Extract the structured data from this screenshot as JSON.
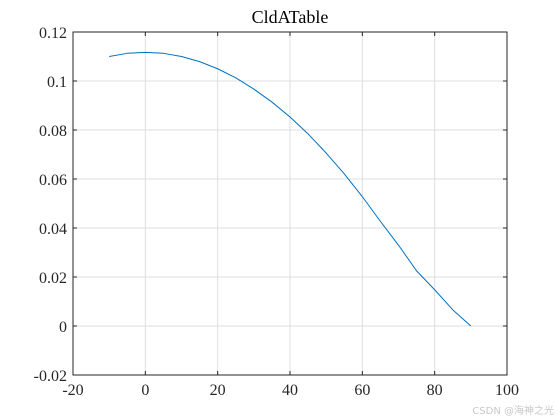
{
  "chart_data": {
    "type": "line",
    "title": "CldATable",
    "xlabel": "",
    "ylabel": "",
    "xlim": [
      -20,
      100
    ],
    "ylim": [
      -0.02,
      0.12
    ],
    "xticks": [
      -20,
      0,
      20,
      40,
      60,
      80,
      100
    ],
    "yticks": [
      -0.02,
      0,
      0.02,
      0.04,
      0.06,
      0.08,
      0.1,
      0.12
    ],
    "xtick_labels": [
      "-20",
      "0",
      "20",
      "40",
      "60",
      "80",
      "100"
    ],
    "ytick_labels": [
      "-0.02",
      "0",
      "0.02",
      "0.04",
      "0.06",
      "0.08",
      "0.1",
      "0.12"
    ],
    "grid": true,
    "series": [
      {
        "color": "#0072bd",
        "x": [
          -10,
          -5,
          0,
          5,
          10,
          15,
          20,
          25,
          30,
          35,
          40,
          45,
          50,
          55,
          60,
          65,
          70,
          75,
          80,
          85,
          90
        ],
        "y": [
          0.11,
          0.1113,
          0.1117,
          0.1113,
          0.11,
          0.1079,
          0.105,
          0.1013,
          0.0967,
          0.0914,
          0.0853,
          0.0784,
          0.0706,
          0.0621,
          0.0528,
          0.0427,
          0.033,
          0.0225,
          0.0148,
          0.0066,
          0.0
        ]
      }
    ]
  },
  "watermark": "CSDN @海神之光"
}
